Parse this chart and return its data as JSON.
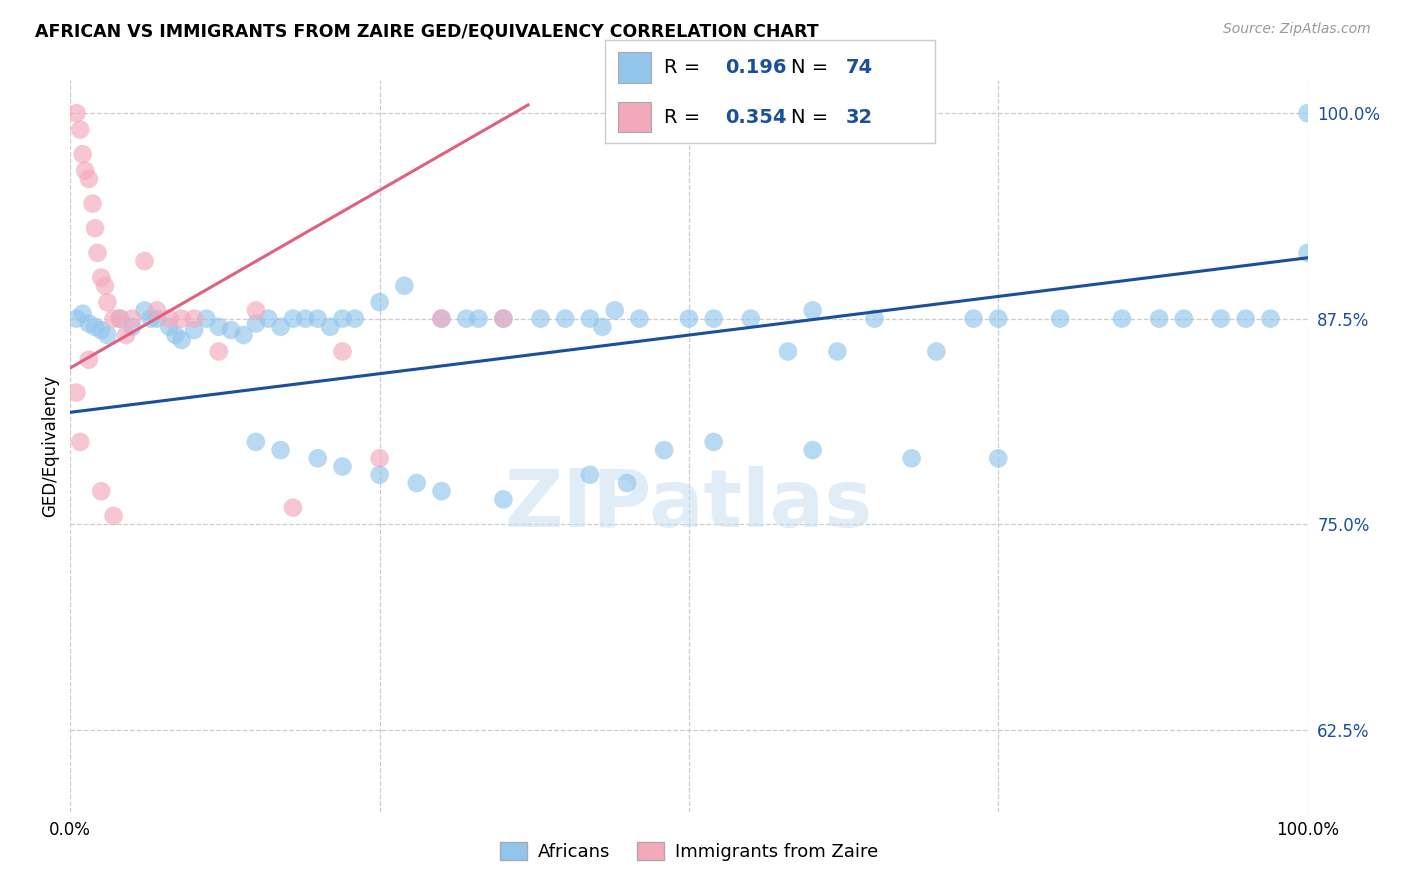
{
  "title": "AFRICAN VS IMMIGRANTS FROM ZAIRE GED/EQUIVALENCY CORRELATION CHART",
  "source": "Source: ZipAtlas.com",
  "ylabel": "GED/Equivalency",
  "ytick_values": [
    0.625,
    0.75,
    0.875,
    1.0
  ],
  "xlim": [
    0.0,
    1.0
  ],
  "ylim": [
    0.575,
    1.02
  ],
  "legend_blue_R": "0.196",
  "legend_blue_N": "74",
  "legend_pink_R": "0.354",
  "legend_pink_N": "32",
  "legend_label_blue": "Africans",
  "legend_label_pink": "Immigrants from Zaire",
  "blue_color": "#92C5EC",
  "pink_color": "#F4A8BC",
  "blue_line_color": "#1A4FA0",
  "pink_line_color": "#E06080",
  "blue_trend_x0": 0.0,
  "blue_trend_y0": 0.818,
  "blue_trend_x1": 1.0,
  "blue_trend_y1": 0.912,
  "pink_trend_x0": 0.0,
  "pink_trend_y0": 0.845,
  "pink_trend_x1": 0.37,
  "pink_trend_y1": 1.005,
  "blue_x": [
    0.005,
    0.01,
    0.015,
    0.02,
    0.025,
    0.03,
    0.04,
    0.05,
    0.06,
    0.065,
    0.07,
    0.08,
    0.085,
    0.09,
    0.1,
    0.11,
    0.12,
    0.13,
    0.14,
    0.15,
    0.16,
    0.17,
    0.18,
    0.19,
    0.2,
    0.21,
    0.22,
    0.23,
    0.25,
    0.27,
    0.3,
    0.32,
    0.33,
    0.35,
    0.38,
    0.4,
    0.42,
    0.43,
    0.44,
    0.46,
    0.5,
    0.52,
    0.55,
    0.58,
    0.6,
    0.62,
    0.65,
    0.7,
    0.73,
    0.75,
    0.8,
    0.85,
    0.88,
    0.9,
    0.93,
    0.95,
    0.97,
    1.0,
    0.15,
    0.17,
    0.2,
    0.22,
    0.25,
    0.28,
    0.3,
    0.35,
    0.42,
    0.45,
    0.48,
    0.52,
    0.6,
    0.68,
    0.75,
    1.0
  ],
  "blue_y": [
    0.875,
    0.878,
    0.872,
    0.87,
    0.868,
    0.865,
    0.875,
    0.87,
    0.88,
    0.875,
    0.875,
    0.87,
    0.865,
    0.862,
    0.868,
    0.875,
    0.87,
    0.868,
    0.865,
    0.872,
    0.875,
    0.87,
    0.875,
    0.875,
    0.875,
    0.87,
    0.875,
    0.875,
    0.885,
    0.895,
    0.875,
    0.875,
    0.875,
    0.875,
    0.875,
    0.875,
    0.875,
    0.87,
    0.88,
    0.875,
    0.875,
    0.875,
    0.875,
    0.855,
    0.88,
    0.855,
    0.875,
    0.855,
    0.875,
    0.875,
    0.875,
    0.875,
    0.875,
    0.875,
    0.875,
    0.875,
    0.875,
    1.0,
    0.8,
    0.795,
    0.79,
    0.785,
    0.78,
    0.775,
    0.77,
    0.765,
    0.78,
    0.775,
    0.795,
    0.8,
    0.795,
    0.79,
    0.79,
    0.915
  ],
  "pink_x": [
    0.005,
    0.008,
    0.01,
    0.012,
    0.015,
    0.018,
    0.02,
    0.022,
    0.025,
    0.028,
    0.03,
    0.035,
    0.04,
    0.045,
    0.05,
    0.06,
    0.07,
    0.08,
    0.09,
    0.1,
    0.12,
    0.15,
    0.18,
    0.22,
    0.25,
    0.3,
    0.35,
    0.005,
    0.008,
    0.015,
    0.025,
    0.035
  ],
  "pink_y": [
    1.0,
    0.99,
    0.975,
    0.965,
    0.96,
    0.945,
    0.93,
    0.915,
    0.9,
    0.895,
    0.885,
    0.875,
    0.875,
    0.865,
    0.875,
    0.91,
    0.88,
    0.875,
    0.875,
    0.875,
    0.855,
    0.88,
    0.76,
    0.855,
    0.79,
    0.875,
    0.875,
    0.83,
    0.8,
    0.85,
    0.77,
    0.755
  ]
}
